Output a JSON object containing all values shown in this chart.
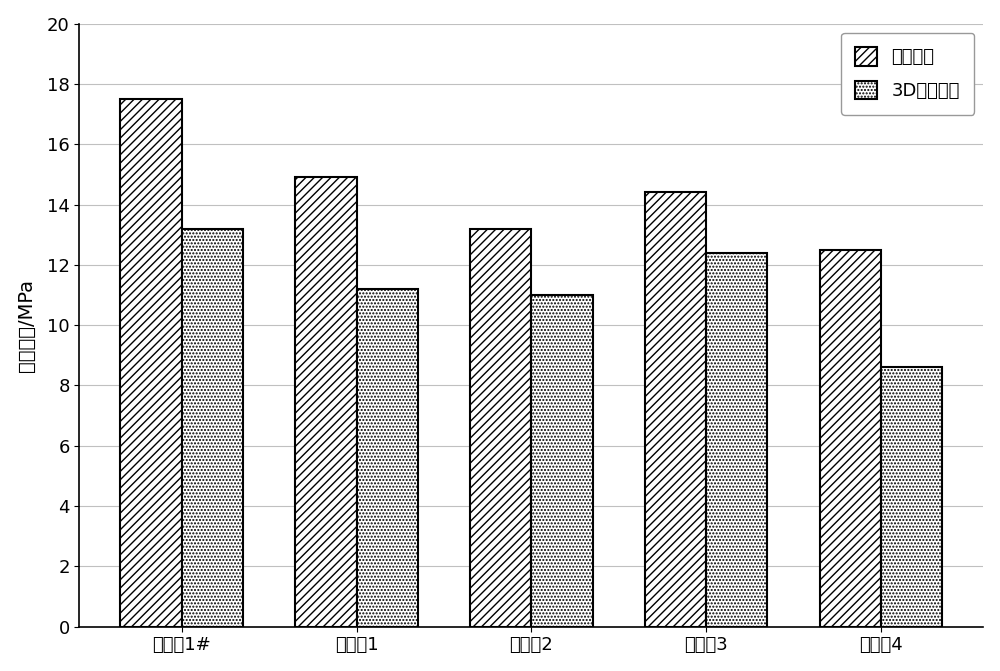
{
  "categories": [
    "实施例1#",
    "对照例1",
    "对照例2",
    "对照例3",
    "对照例4"
  ],
  "series1_label": "浇筑试件",
  "series2_label": "3D打印试件",
  "series1_values": [
    17.5,
    14.9,
    13.2,
    14.4,
    12.5
  ],
  "series2_values": [
    13.2,
    11.2,
    11.0,
    12.4,
    8.6
  ],
  "ylabel": "抗压强度/MPa",
  "ylim": [
    0,
    20
  ],
  "yticks": [
    0,
    2,
    4,
    6,
    8,
    10,
    12,
    14,
    16,
    18,
    20
  ],
  "bar_width": 0.35,
  "series1_hatch": "////",
  "series2_hatch": ".....",
  "series1_facecolor": "#ffffff",
  "series2_facecolor": "#ffffff",
  "edgecolor": "#000000",
  "background_color": "#ffffff",
  "grid_color": "#c0c0c0",
  "legend_fontsize": 13,
  "tick_fontsize": 13,
  "label_fontsize": 14
}
